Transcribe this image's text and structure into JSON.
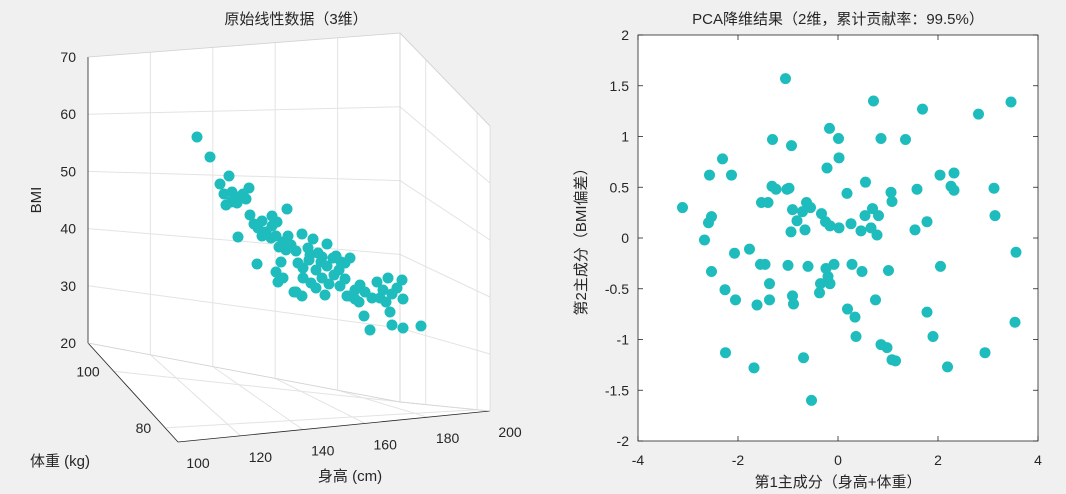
{
  "chart_data": [
    {
      "type": "scatter3d",
      "title": "原始线性数据（3维）",
      "xlabel": "身高 (cm)",
      "ylabel": "体重 (kg)",
      "zlabel": "BMI",
      "xlim": [
        100,
        200
      ],
      "ylim": [
        75,
        110
      ],
      "zlim": [
        20,
        70
      ],
      "xticks": [
        "100",
        "120",
        "140",
        "160",
        "180",
        "200"
      ],
      "yticks": [
        "80",
        "100"
      ],
      "zticks": [
        "20",
        "30",
        "40",
        "50",
        "60",
        "70"
      ],
      "grid": true,
      "marker_color": "#1ebcbc",
      "points_screen_approx": [
        [
          197,
          137
        ],
        [
          210,
          157
        ],
        [
          220,
          184
        ],
        [
          229,
          176
        ],
        [
          224,
          194
        ],
        [
          232,
          192
        ],
        [
          226,
          205
        ],
        [
          237,
          197
        ],
        [
          249,
          188
        ],
        [
          246,
          199
        ],
        [
          237,
          203
        ],
        [
          243,
          194
        ],
        [
          231,
          202
        ],
        [
          287,
          209
        ],
        [
          250,
          215
        ],
        [
          254,
          224
        ],
        [
          258,
          228
        ],
        [
          262,
          221
        ],
        [
          266,
          232
        ],
        [
          272,
          216
        ],
        [
          277,
          222
        ],
        [
          262,
          236
        ],
        [
          238,
          237
        ],
        [
          271,
          238
        ],
        [
          276,
          236
        ],
        [
          283,
          242
        ],
        [
          288,
          236
        ],
        [
          279,
          247
        ],
        [
          272,
          226
        ],
        [
          281,
          262
        ],
        [
          286,
          250
        ],
        [
          291,
          245
        ],
        [
          296,
          251
        ],
        [
          302,
          234
        ],
        [
          308,
          248
        ],
        [
          313,
          239
        ],
        [
          318,
          253
        ],
        [
          322,
          257
        ],
        [
          327,
          244
        ],
        [
          298,
          263
        ],
        [
          303,
          268
        ],
        [
          309,
          260
        ],
        [
          316,
          270
        ],
        [
          321,
          262
        ],
        [
          327,
          266
        ],
        [
          333,
          258
        ],
        [
          339,
          270
        ],
        [
          345,
          263
        ],
        [
          350,
          258
        ],
        [
          303,
          278
        ],
        [
          311,
          283
        ],
        [
          316,
          288
        ],
        [
          322,
          278
        ],
        [
          329,
          284
        ],
        [
          334,
          275
        ],
        [
          340,
          286
        ],
        [
          345,
          279
        ],
        [
          355,
          290
        ],
        [
          360,
          285
        ],
        [
          365,
          292
        ],
        [
          372,
          298
        ],
        [
          377,
          282
        ],
        [
          383,
          290
        ],
        [
          388,
          278
        ],
        [
          392,
          294
        ],
        [
          397,
          288
        ],
        [
          402,
          280
        ],
        [
          403,
          299
        ],
        [
          359,
          302
        ],
        [
          364,
          316
        ],
        [
          370,
          330
        ],
        [
          380,
          298
        ],
        [
          386,
          302
        ],
        [
          390,
          312
        ],
        [
          276,
          272
        ],
        [
          257,
          264
        ],
        [
          294,
          292
        ],
        [
          278,
          282
        ],
        [
          336,
          256
        ],
        [
          341,
          262
        ],
        [
          296,
          292
        ],
        [
          283,
          278
        ],
        [
          310,
          255
        ],
        [
          325,
          295
        ],
        [
          347,
          296
        ],
        [
          355,
          299
        ],
        [
          403,
          328
        ],
        [
          421,
          326
        ],
        [
          392,
          325
        ],
        [
          302,
          296
        ],
        [
          350,
          296
        ]
      ]
    },
    {
      "type": "scatter",
      "title": "PCA降维结果（2维，累计贡献率：99.5%）",
      "xlabel": "第1主成分（身高+体重）",
      "ylabel": "第2主成分（BMI偏差）",
      "xlim": [
        -4,
        4
      ],
      "ylim": [
        -2,
        2
      ],
      "xticks": [
        "-4",
        "-2",
        "0",
        "2",
        "4"
      ],
      "yticks": [
        "-2",
        "-1.5",
        "-1",
        "-0.5",
        "0",
        "0.5",
        "1",
        "1.5",
        "2"
      ],
      "grid": false,
      "marker_color": "#1ebcbc",
      "points": [
        [
          -1.05,
          1.57
        ],
        [
          0.71,
          1.35
        ],
        [
          1.69,
          1.27
        ],
        [
          3.46,
          1.34
        ],
        [
          2.81,
          1.22
        ],
        [
          -1.31,
          0.97
        ],
        [
          -0.93,
          0.91
        ],
        [
          0.86,
          0.98
        ],
        [
          1.35,
          0.97
        ],
        [
          -0.17,
          1.08
        ],
        [
          0.01,
          0.98
        ],
        [
          0.02,
          0.79
        ],
        [
          -0.22,
          0.69
        ],
        [
          -2.31,
          0.78
        ],
        [
          -2.57,
          0.62
        ],
        [
          -2.13,
          0.62
        ],
        [
          -3.11,
          0.3
        ],
        [
          -2.53,
          0.21
        ],
        [
          -2.59,
          0.15
        ],
        [
          -2.67,
          -0.02
        ],
        [
          -1.32,
          0.51
        ],
        [
          -1.24,
          0.48
        ],
        [
          -1.02,
          0.48
        ],
        [
          -0.98,
          0.49
        ],
        [
          -1.53,
          0.35
        ],
        [
          -1.4,
          0.35
        ],
        [
          -0.91,
          0.28
        ],
        [
          -0.63,
          0.35
        ],
        [
          -0.71,
          0.26
        ],
        [
          -0.55,
          0.3
        ],
        [
          -0.33,
          0.24
        ],
        [
          -0.25,
          0.16
        ],
        [
          -0.82,
          0.17
        ],
        [
          -0.94,
          0.06
        ],
        [
          -0.66,
          0.08
        ],
        [
          -0.16,
          0.12
        ],
        [
          0.02,
          0.1
        ],
        [
          0.26,
          0.14
        ],
        [
          0.46,
          0.07
        ],
        [
          0.66,
          0.1
        ],
        [
          0.54,
          0.22
        ],
        [
          0.81,
          0.22
        ],
        [
          0.69,
          0.29
        ],
        [
          0.78,
          0.03
        ],
        [
          0.18,
          0.44
        ],
        [
          0.55,
          0.55
        ],
        [
          1.06,
          0.45
        ],
        [
          1.08,
          0.36
        ],
        [
          1.58,
          0.48
        ],
        [
          1.78,
          0.16
        ],
        [
          1.54,
          0.08
        ],
        [
          2.04,
          0.62
        ],
        [
          2.26,
          0.51
        ],
        [
          2.32,
          0.64
        ],
        [
          2.32,
          0.47
        ],
        [
          3.12,
          0.49
        ],
        [
          3.14,
          0.22
        ],
        [
          3.56,
          -0.14
        ],
        [
          -2.07,
          -0.15
        ],
        [
          -1.77,
          -0.11
        ],
        [
          -1.46,
          -0.26
        ],
        [
          -1.55,
          -0.26
        ],
        [
          -2.53,
          -0.33
        ],
        [
          -2.26,
          -0.51
        ],
        [
          -2.05,
          -0.61
        ],
        [
          -1.62,
          -0.66
        ],
        [
          -1.37,
          -0.61
        ],
        [
          -1.37,
          -0.45
        ],
        [
          -1.0,
          -0.27
        ],
        [
          -0.6,
          -0.28
        ],
        [
          -0.91,
          -0.57
        ],
        [
          -0.89,
          -0.65
        ],
        [
          -0.37,
          -0.54
        ],
        [
          -0.35,
          -0.45
        ],
        [
          -0.16,
          -0.45
        ],
        [
          -0.24,
          -0.3
        ],
        [
          -0.2,
          -0.38
        ],
        [
          -0.08,
          -0.26
        ],
        [
          0.28,
          -0.26
        ],
        [
          0.48,
          -0.33
        ],
        [
          1.01,
          -0.32
        ],
        [
          0.75,
          -0.61
        ],
        [
          0.34,
          -0.78
        ],
        [
          0.36,
          -0.97
        ],
        [
          0.19,
          -0.7
        ],
        [
          0.86,
          -1.05
        ],
        [
          0.98,
          -1.08
        ],
        [
          1.08,
          -1.2
        ],
        [
          1.15,
          -1.21
        ],
        [
          2.05,
          -0.28
        ],
        [
          1.78,
          -0.73
        ],
        [
          1.9,
          -0.97
        ],
        [
          2.19,
          -1.27
        ],
        [
          2.94,
          -1.13
        ],
        [
          3.54,
          -0.83
        ],
        [
          -2.25,
          -1.13
        ],
        [
          -1.68,
          -1.28
        ],
        [
          -0.69,
          -1.18
        ],
        [
          -0.53,
          -1.6
        ]
      ]
    }
  ]
}
